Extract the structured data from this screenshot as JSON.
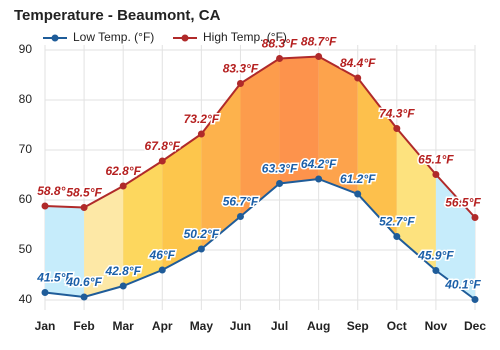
{
  "chart_data": {
    "type": "line",
    "title": "Temperature - Beaumont, CA",
    "categories": [
      "Jan",
      "Feb",
      "Mar",
      "Apr",
      "May",
      "Jun",
      "Jul",
      "Aug",
      "Sep",
      "Oct",
      "Nov",
      "Dec"
    ],
    "series": [
      {
        "name": "Low Temp. (°F)",
        "color": "#1f5c99",
        "label_color": "#1b5fa8",
        "values": [
          41.5,
          40.6,
          42.8,
          46,
          50.2,
          56.7,
          63.3,
          64.2,
          61.2,
          52.7,
          45.9,
          40.1
        ],
        "value_labels": [
          "41.5°F",
          "40.6°F",
          "42.8°F",
          "46°F",
          "50.2°F",
          "56.7°F",
          "63.3°F",
          "64.2°F",
          "61.2°F",
          "52.7°F",
          "45.9°F",
          "40.1°F"
        ]
      },
      {
        "name": "High Temp. (°F)",
        "color": "#b02a2a",
        "label_color": "#b52020",
        "values": [
          58.8,
          58.5,
          62.8,
          67.8,
          73.2,
          83.3,
          88.3,
          88.7,
          84.4,
          74.3,
          65.1,
          56.5
        ],
        "value_labels": [
          "58.8°F",
          "58.5°F",
          "62.8°F",
          "67.8°F",
          "73.2°F",
          "83.3°F",
          "88.3°F",
          "88.7°F",
          "84.4°F",
          "74.3°F",
          "65.1°F",
          "56.5°F"
        ]
      }
    ],
    "fill_colors": [
      "#c6ecfb",
      "#fde8a6",
      "#fdd75e",
      "#fdc64c",
      "#fdb24c",
      "#fd9c4c",
      "#fd934c",
      "#fda34c",
      "#fdc04c",
      "#fde27e",
      "#c6ecfb"
    ],
    "ylim": [
      38,
      91
    ],
    "yticks": [
      40,
      50,
      60,
      70,
      80,
      90
    ],
    "grid": true
  }
}
